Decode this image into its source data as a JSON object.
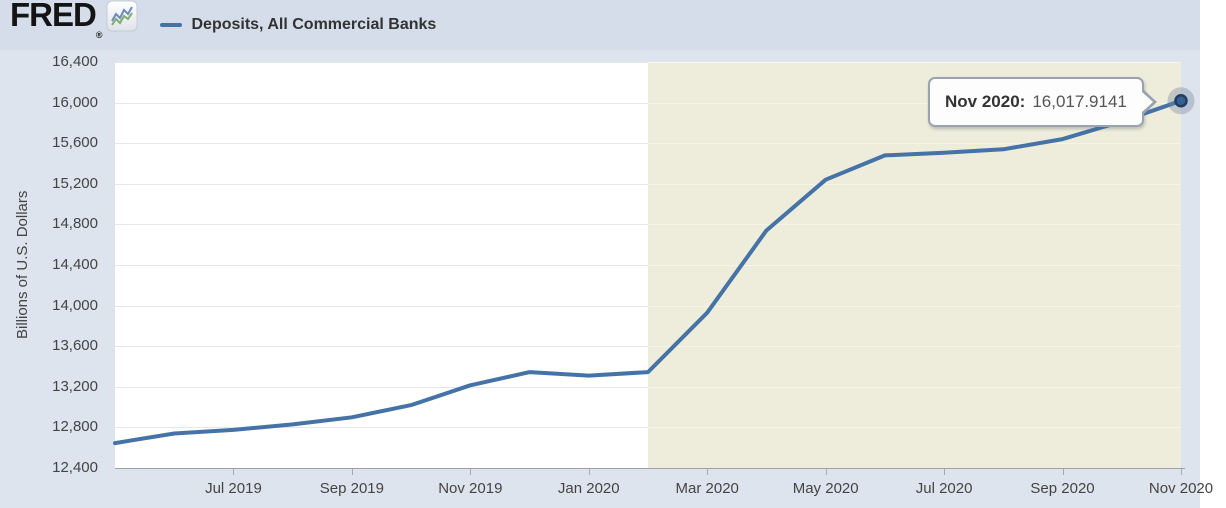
{
  "header": {
    "logo": "FRED",
    "registered": "®",
    "legend_label": "Deposits, All Commercial Banks"
  },
  "chart_data": {
    "type": "line",
    "title": "Deposits, All Commercial Banks",
    "ylabel": "Billions of U.S. Dollars",
    "x": [
      "May 2019",
      "Jun 2019",
      "Jul 2019",
      "Aug 2019",
      "Sep 2019",
      "Oct 2019",
      "Nov 2019",
      "Dec 2019",
      "Jan 2020",
      "Feb 2020",
      "Mar 2020",
      "Apr 2020",
      "May 2020",
      "Jun 2020",
      "Jul 2020",
      "Aug 2020",
      "Sep 2020",
      "Oct 2020",
      "Nov 2020"
    ],
    "values": [
      12645,
      12740,
      12775,
      12830,
      12900,
      13020,
      13215,
      13345,
      13310,
      13345,
      13930,
      14740,
      15240,
      15480,
      15505,
      15540,
      15640,
      15815,
      16017.9141
    ],
    "ylim": [
      12400,
      16400
    ],
    "ytick_labels": [
      "16,400",
      "16,000",
      "15,600",
      "15,200",
      "14,800",
      "14,400",
      "14,000",
      "13,600",
      "13,200",
      "12,800",
      "12,400"
    ],
    "xtick_labels": [
      "Jul 2019",
      "Sep 2019",
      "Nov 2019",
      "Jan 2020",
      "Mar 2020",
      "May 2020",
      "Jul 2020",
      "Sep 2020",
      "Nov 2020"
    ],
    "xtick_indices": [
      2,
      4,
      6,
      8,
      10,
      12,
      14,
      16,
      18
    ],
    "shaded_region": {
      "start_index": 9,
      "end": "plot-right-edge"
    },
    "grid": true,
    "legend_position": "top",
    "colors": {
      "line": "#4572a7",
      "shading": "#eeecda",
      "grid_on_white": "#e6e6e6",
      "grid_on_shading": "#f6f4e6",
      "marker_fill": "#35618f",
      "marker_ring": "#1d3d63",
      "marker_halo": "rgba(108,127,156,0.35)"
    }
  },
  "tooltip": {
    "label": "Nov 2020:",
    "value": "16,017.9141"
  }
}
